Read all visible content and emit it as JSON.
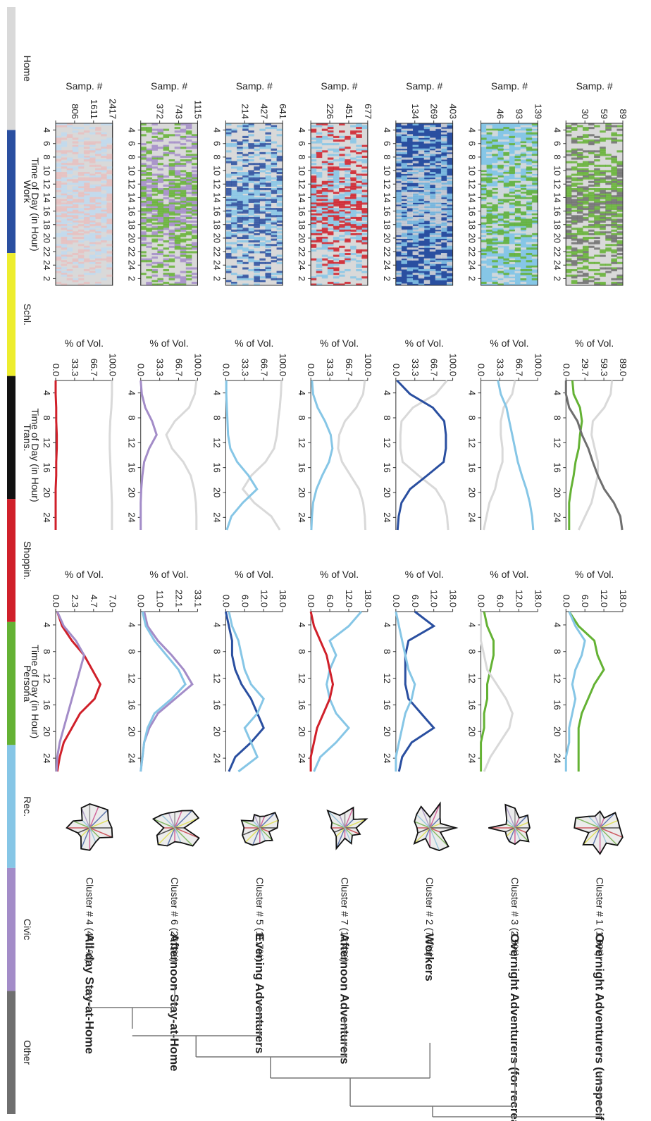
{
  "chart_data": {
    "type": "line",
    "orientation": "rotated-90-clockwise",
    "legend": {
      "placement": "top",
      "entries": [
        {
          "label": "Home",
          "color": "#d9d9d9"
        },
        {
          "label": "Work",
          "color": "#2a4fa0"
        },
        {
          "label": "Schl.",
          "color": "#eded2e"
        },
        {
          "label": "Trans.",
          "color": "#111111"
        },
        {
          "label": "Shoppin.",
          "color": "#d0202a"
        },
        {
          "label": "Persona",
          "color": "#64b234"
        },
        {
          "label": "Rec.",
          "color": "#86c6e6"
        },
        {
          "label": "Civic",
          "color": "#a38cc8"
        },
        {
          "label": "Other",
          "color": "#6f6f6f"
        }
      ]
    },
    "heatmap": {
      "xlabel": "Time of Day (in Hour)",
      "ylabel": "Samp. #",
      "xticks": [
        "4",
        "6",
        "8",
        "10",
        "12",
        "14",
        "16",
        "18",
        "20",
        "22",
        "24",
        "2"
      ]
    },
    "share_panel": {
      "xlabel": "Time of Day (in Hour)",
      "ylabel": "% of Vol.",
      "xticks": [
        "4",
        "8",
        "12",
        "16",
        "20",
        "24"
      ]
    },
    "rate_panel": {
      "xlabel": "Time of Day (in Hour)",
      "ylabel": "% of Vol.",
      "xticks": [
        "4",
        "8",
        "12",
        "16",
        "20",
        "24"
      ]
    },
    "clusters": [
      {
        "label": "Cluster # 1 (1.6%)",
        "group": "Overnight Adventurers (unspecified)",
        "group_color": "#333333",
        "heat_yticks": [
          "30",
          "59",
          "89"
        ],
        "heat_colors": [
          "#d9d9d9",
          "#64b234",
          "#6f6f6f"
        ],
        "share_yticks": [
          "0.0",
          "29.7",
          "59.3",
          "89.0"
        ],
        "share_ymax": 89.0,
        "rate_yticks": [
          "0.0",
          "6.0",
          "12.0",
          "18.0"
        ],
        "rate_ymax": 18.0,
        "share_series": [
          {
            "name": "Home",
            "values": [
              72,
              70,
              60,
              42,
              40,
              45,
              50,
              50,
              45,
              40,
              30,
              20
            ]
          },
          {
            "name": "Persona",
            "values": [
              10,
              12,
              22,
              25,
              22,
              20,
              15,
              12,
              8,
              5,
              5,
              5
            ]
          },
          {
            "name": "Other",
            "values": [
              0,
              0,
              5,
              18,
              25,
              35,
              42,
              50,
              60,
              75,
              85,
              88
            ]
          }
        ],
        "rate_series": [
          {
            "name": "Persona",
            "values": [
              1,
              4,
              9,
              10,
              12,
              9,
              7,
              5,
              4,
              4,
              4,
              4
            ]
          },
          {
            "name": "Rec.",
            "values": [
              1,
              3,
              6,
              5,
              3,
              2,
              3,
              2,
              1,
              1,
              0,
              0
            ]
          }
        ]
      },
      {
        "label": "Cluster # 3 (2.5%)",
        "group": "Overnight Adventurers (for recreation)",
        "group_color": "#6ab8de",
        "heat_yticks": [
          "46",
          "93",
          "139"
        ],
        "heat_colors": [
          "#86c6e6",
          "#d9d9d9",
          "#64b234"
        ],
        "share_yticks": [
          "0.0",
          "33.3",
          "66.7",
          "100.0"
        ],
        "share_ymax": 100.0,
        "rate_yticks": [
          "0.0",
          "6.0",
          "12.0",
          "18.0"
        ],
        "rate_ymax": 18.0,
        "share_series": [
          {
            "name": "Home",
            "values": [
              60,
              55,
              40,
              35,
              35,
              38,
              38,
              30,
              25,
              15,
              10,
              5
            ]
          },
          {
            "name": "Rec.",
            "values": [
              30,
              35,
              45,
              50,
              55,
              60,
              65,
              72,
              80,
              86,
              90,
              92
            ]
          }
        ],
        "rate_series": [
          {
            "name": "Persona",
            "values": [
              1,
              2,
              4,
              4,
              3,
              2,
              2,
              1,
              1,
              0,
              0,
              0
            ]
          },
          {
            "name": "Home",
            "values": [
              0,
              0,
              0,
              1,
              2,
              5,
              8,
              10,
              9,
              6,
              3,
              1
            ]
          }
        ]
      },
      {
        "label": "Cluster # 2 (7.4%)",
        "group": "Workers",
        "group_color": "#2a3f99",
        "heat_yticks": [
          "134",
          "269",
          "403"
        ],
        "heat_colors": [
          "#2a4fa0",
          "#d9d9d9",
          "#86c6e6"
        ],
        "share_yticks": [
          "0.0",
          "33.3",
          "66.7",
          "100.0"
        ],
        "share_ymax": 100.0,
        "rate_yticks": [
          "0.0",
          "6.0",
          "12.0",
          "18.0"
        ],
        "rate_ymax": 18.0,
        "share_series": [
          {
            "name": "Home",
            "values": [
              90,
              70,
              30,
              10,
              8,
              8,
              12,
              40,
              70,
              85,
              90,
              92
            ]
          },
          {
            "name": "Work",
            "values": [
              2,
              25,
              65,
              85,
              88,
              88,
              84,
              55,
              25,
              10,
              5,
              3
            ]
          }
        ],
        "rate_series": [
          {
            "name": "Work",
            "values": [
              6,
              12,
              4,
              3,
              3,
              3,
              4,
              8,
              12,
              5,
              2,
              1
            ]
          },
          {
            "name": "Rec.",
            "values": [
              0,
              1,
              2,
              3,
              4,
              6,
              5,
              3,
              2,
              1,
              0,
              0
            ]
          }
        ]
      },
      {
        "label": "Cluster # 7 (12.4%)",
        "group": "Afternoon Adventurers",
        "group_color": "#6ab8de",
        "heat_yticks": [
          "226",
          "451",
          "677"
        ],
        "heat_colors": [
          "#d9d9d9",
          "#86c6e6",
          "#d0202a"
        ],
        "share_yticks": [
          "0.0",
          "33.3",
          "66.7",
          "100.0"
        ],
        "share_ymax": 100.0,
        "rate_yticks": [
          "0.0",
          "6.0",
          "12.0",
          "18.0"
        ],
        "rate_ymax": 18.0,
        "share_series": [
          {
            "name": "Home",
            "values": [
              95,
              92,
              80,
              60,
              50,
              48,
              55,
              70,
              85,
              92,
              95,
              96
            ]
          },
          {
            "name": "Rec.",
            "values": [
              2,
              4,
              12,
              25,
              35,
              38,
              32,
              20,
              10,
              4,
              2,
              1
            ]
          }
        ],
        "rate_series": [
          {
            "name": "Rec.",
            "values": [
              16,
              12,
              6,
              8,
              6,
              5,
              6,
              8,
              12,
              8,
              3,
              1
            ]
          },
          {
            "name": "Shoppin.",
            "values": [
              0,
              1,
              3,
              5,
              6,
              7,
              6,
              4,
              2,
              1,
              0,
              0
            ]
          }
        ]
      },
      {
        "label": "Cluster # 5 (11.7%)",
        "group": "Evening Adventurers",
        "group_color": "#6ab8de",
        "heat_yticks": [
          "214",
          "427",
          "641"
        ],
        "heat_colors": [
          "#d9d9d9",
          "#86c6e6",
          "#2a4fa0"
        ],
        "share_yticks": [
          "0.0",
          "33.3",
          "66.7",
          "100.0"
        ],
        "share_ymax": 100.0,
        "rate_yticks": [
          "0.0",
          "6.0",
          "12.0",
          "18.0"
        ],
        "rate_ymax": 18.0,
        "share_series": [
          {
            "name": "Home",
            "values": [
              98,
              97,
              95,
              92,
              90,
              85,
              70,
              45,
              30,
              50,
              80,
              95
            ]
          },
          {
            "name": "Rec.",
            "values": [
              1,
              1,
              2,
              3,
              4,
              8,
              20,
              40,
              55,
              30,
              10,
              2
            ]
          }
        ],
        "rate_series": [
          {
            "name": "Work",
            "values": [
              0,
              1,
              2,
              2,
              3,
              5,
              8,
              10,
              12,
              8,
              3,
              1
            ]
          },
          {
            "name": "Rec.",
            "values": [
              1,
              2,
              4,
              5,
              6,
              8,
              12,
              10,
              6,
              8,
              10,
              4
            ]
          }
        ]
      },
      {
        "label": "Cluster # 6 (20.3%)",
        "group": "Afternoon Stay-at-Home",
        "group_color": "#7a7a7a",
        "heat_yticks": [
          "372",
          "743",
          "1115"
        ],
        "heat_colors": [
          "#d9d9d9",
          "#a38cc8",
          "#64b234"
        ],
        "share_yticks": [
          "0.0",
          "33.3",
          "66.7",
          "100.0"
        ],
        "share_ymax": 100.0,
        "rate_yticks": [
          "0.0",
          "11.0",
          "22.1",
          "33.1"
        ],
        "rate_ymax": 33.1,
        "share_series": [
          {
            "name": "Home",
            "values": [
              98,
              95,
              85,
              60,
              45,
              55,
              75,
              88,
              94,
              97,
              98,
              98
            ]
          },
          {
            "name": "Civic",
            "values": [
              0,
              2,
              8,
              20,
              28,
              15,
              6,
              3,
              1,
              0,
              0,
              0
            ]
          }
        ],
        "rate_series": [
          {
            "name": "Civic",
            "values": [
              2,
              4,
              10,
              18,
              25,
              30,
              20,
              10,
              5,
              2,
              1,
              0
            ]
          },
          {
            "name": "Rec.",
            "values": [
              1,
              3,
              8,
              15,
              22,
              26,
              18,
              8,
              4,
              2,
              1,
              0
            ]
          }
        ]
      },
      {
        "label": "Cluster # 4 (44.1%)",
        "group": "All-day Stay-at-Home",
        "group_color": "#7a7a7a",
        "heat_yticks": [
          "806",
          "1611",
          "2417"
        ],
        "heat_colors": [
          "#d9d9d9",
          "#e8c0c0",
          "#bfd9ee"
        ],
        "share_yticks": [
          "0.0",
          "33.3",
          "66.7",
          "100.0"
        ],
        "share_ymax": 100.0,
        "rate_yticks": [
          "0.0",
          "2.3",
          "4.7",
          "7.0"
        ],
        "rate_ymax": 7.0,
        "share_series": [
          {
            "name": "Home",
            "values": [
              99,
              99,
              98,
              96,
              95,
              95,
              96,
              97,
              98,
              99,
              99,
              99
            ]
          },
          {
            "name": "Shoppin.",
            "values": [
              0,
              0,
              1,
              1,
              2,
              2,
              1,
              1,
              0,
              0,
              0,
              0
            ]
          }
        ],
        "rate_series": [
          {
            "name": "Shoppin.",
            "values": [
              0.2,
              0.8,
              2,
              3.5,
              4.5,
              5.5,
              4.8,
              3,
              2,
              1,
              0.5,
              0.2
            ]
          },
          {
            "name": "Civic",
            "values": [
              0.2,
              1,
              2.5,
              3.5,
              3,
              2.5,
              2,
              1.5,
              1,
              0.5,
              0.2,
              0.1
            ]
          }
        ]
      }
    ]
  }
}
